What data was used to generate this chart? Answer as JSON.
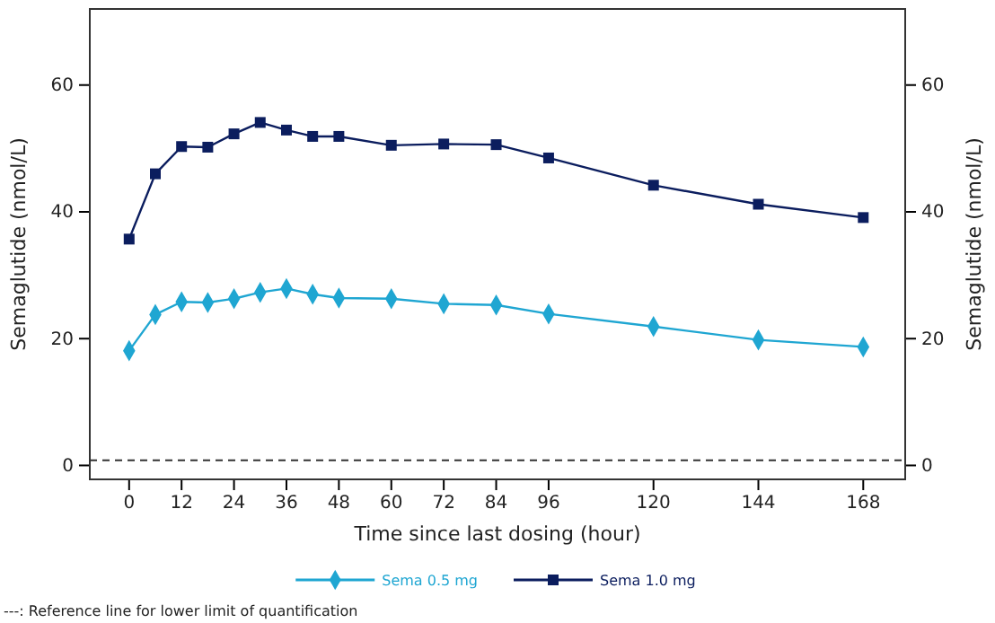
{
  "chart_data": {
    "type": "line",
    "xlabel": "Time since last dosing (hour)",
    "ylabel": "Semaglutide (nmol/L)",
    "y2label": "Semaglutide (nmol/L)",
    "x": [
      0,
      6,
      12,
      18,
      24,
      30,
      36,
      42,
      48,
      60,
      72,
      84,
      96,
      120,
      144,
      168
    ],
    "series": [
      {
        "name": "Sema 0.5 mg",
        "color": "#1fa6d2",
        "marker": "diamond",
        "values": [
          18.1,
          23.8,
          25.8,
          25.7,
          26.3,
          27.3,
          27.9,
          27.0,
          26.4,
          26.3,
          25.5,
          25.3,
          23.9,
          21.9,
          19.8,
          18.7
        ]
      },
      {
        "name": "Sema 1.0 mg",
        "color": "#0b1d5e",
        "marker": "square",
        "values": [
          35.7,
          46.0,
          50.3,
          50.2,
          52.3,
          54.1,
          52.9,
          51.9,
          51.9,
          50.5,
          50.7,
          50.6,
          48.5,
          44.2,
          41.2,
          39.1
        ]
      }
    ],
    "xlim": [
      -9,
      177.6
    ],
    "xticks": [
      0,
      12,
      24,
      36,
      48,
      60,
      72,
      84,
      96,
      120,
      144,
      168
    ],
    "ylim": [
      -2.2,
      72
    ],
    "yticks": [
      0,
      20,
      40,
      60
    ],
    "y2lim": [
      -2.2,
      72
    ],
    "y2ticks": [
      0,
      20,
      40,
      60
    ],
    "ref_lines": [
      {
        "axis": "y",
        "value": 0.8,
        "line_style": "dashed",
        "color": "#333333"
      }
    ],
    "grid": false,
    "legend": "bottom",
    "line_style": "solid",
    "annotations": [
      "---: Reference line for lower limit of quantification"
    ]
  }
}
